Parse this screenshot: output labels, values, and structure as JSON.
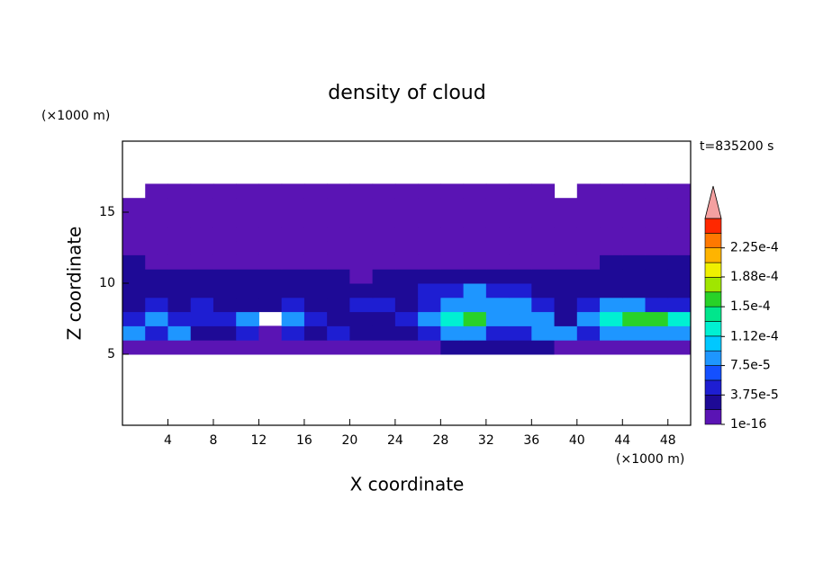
{
  "chart_data": {
    "type": "contour",
    "title": "density of cloud",
    "x_label": "X coordinate",
    "y_label": "Z coordinate",
    "x_unit": "(×1000 m)",
    "y_unit": "(×1000 m)",
    "time_label": "t=835200 s",
    "xlim": [
      0,
      50
    ],
    "ylim": [
      0,
      20
    ],
    "xticks": [
      4,
      8,
      12,
      16,
      20,
      24,
      28,
      32,
      36,
      40,
      44,
      48
    ],
    "yticks": [
      5,
      10,
      15
    ],
    "field": {
      "x": [
        1,
        3,
        5,
        7,
        9,
        11,
        13,
        15,
        17,
        19,
        21,
        23,
        25,
        27,
        29,
        31,
        33,
        35,
        37,
        39,
        41,
        43,
        45,
        47,
        49
      ],
      "z": [
        5.5,
        6.5,
        7.5,
        8.5,
        9.5,
        10.5,
        11.5,
        12.5,
        13.5,
        14.5,
        15.5,
        16.5
      ],
      "values": [
        [
          1e-05,
          1e-05,
          1e-05,
          1e-05,
          1e-05,
          1e-05,
          1e-05,
          1e-05,
          1e-05,
          1e-05,
          1e-05,
          1e-05,
          1e-05,
          1e-05,
          3e-05,
          3e-05,
          3e-05,
          3e-05,
          3e-05,
          1e-05,
          1e-05,
          1e-05,
          1e-05,
          1e-05,
          1e-05
        ],
        [
          8.5e-05,
          5e-05,
          8.5e-05,
          3e-05,
          3e-05,
          5e-05,
          1e-05,
          5e-05,
          3e-05,
          5e-05,
          3e-05,
          3e-05,
          3e-05,
          5e-05,
          8.5e-05,
          8.5e-05,
          5e-05,
          5e-05,
          8.5e-05,
          8.5e-05,
          5e-05,
          8.5e-05,
          8.5e-05,
          8.5e-05,
          8.5e-05
        ],
        [
          5e-05,
          8.5e-05,
          5e-05,
          5e-05,
          5e-05,
          8.5e-05,
          null,
          8.5e-05,
          5e-05,
          3e-05,
          3e-05,
          3e-05,
          5e-05,
          8.5e-05,
          0.00012,
          0.00016,
          8.5e-05,
          8.5e-05,
          8.5e-05,
          3e-05,
          8.5e-05,
          0.00012,
          0.00016,
          0.00016,
          0.00012
        ],
        [
          3e-05,
          5e-05,
          3e-05,
          5e-05,
          3e-05,
          3e-05,
          3e-05,
          5e-05,
          3e-05,
          3e-05,
          5e-05,
          5e-05,
          3e-05,
          5e-05,
          8.5e-05,
          8.5e-05,
          8.5e-05,
          8.5e-05,
          5e-05,
          3e-05,
          5e-05,
          8.5e-05,
          8.5e-05,
          5e-05,
          5e-05
        ],
        [
          3e-05,
          3e-05,
          3e-05,
          3e-05,
          3e-05,
          3e-05,
          3e-05,
          3e-05,
          3e-05,
          3e-05,
          3e-05,
          3e-05,
          3e-05,
          5e-05,
          5e-05,
          8.5e-05,
          5e-05,
          5e-05,
          3e-05,
          3e-05,
          3e-05,
          3e-05,
          3e-05,
          3e-05,
          3e-05
        ],
        [
          3e-05,
          3e-05,
          3e-05,
          3e-05,
          3e-05,
          3e-05,
          3e-05,
          3e-05,
          3e-05,
          3e-05,
          1e-05,
          3e-05,
          3e-05,
          3e-05,
          3e-05,
          3e-05,
          3e-05,
          3e-05,
          3e-05,
          3e-05,
          3e-05,
          3e-05,
          3e-05,
          3e-05,
          3e-05
        ],
        [
          3e-05,
          1e-05,
          1e-05,
          1e-05,
          1e-05,
          1e-05,
          1e-05,
          1e-05,
          1e-05,
          1e-05,
          1e-05,
          1e-05,
          1e-05,
          1e-05,
          1e-05,
          1e-05,
          1e-05,
          1e-05,
          1e-05,
          1e-05,
          1e-05,
          3e-05,
          3e-05,
          3e-05,
          3e-05
        ],
        [
          1e-05,
          1e-05,
          1e-05,
          1e-05,
          1e-05,
          1e-05,
          1e-05,
          1e-05,
          1e-05,
          1e-05,
          1e-05,
          1e-05,
          1e-05,
          1e-05,
          1e-05,
          1e-05,
          1e-05,
          1e-05,
          1e-05,
          1e-05,
          1e-05,
          1e-05,
          1e-05,
          1e-05,
          1e-05
        ],
        [
          1e-05,
          1e-05,
          1e-05,
          1e-05,
          1e-05,
          1e-05,
          1e-05,
          1e-05,
          1e-05,
          1e-05,
          1e-05,
          1e-05,
          1e-05,
          1e-05,
          1e-05,
          1e-05,
          1e-05,
          1e-05,
          1e-05,
          1e-05,
          1e-05,
          1e-05,
          1e-05,
          1e-05,
          1e-05
        ],
        [
          1e-05,
          1e-05,
          1e-05,
          1e-05,
          1e-05,
          1e-05,
          1e-05,
          1e-05,
          1e-05,
          1e-05,
          1e-05,
          1e-05,
          1e-05,
          1e-05,
          1e-05,
          1e-05,
          1e-05,
          1e-05,
          1e-05,
          1e-05,
          1e-05,
          1e-05,
          1e-05,
          1e-05,
          1e-05
        ],
        [
          1e-05,
          1e-05,
          1e-05,
          1e-05,
          1e-05,
          1e-05,
          1e-05,
          1e-05,
          1e-05,
          1e-05,
          1e-05,
          1e-05,
          1e-05,
          1e-05,
          1e-05,
          1e-05,
          1e-05,
          1e-05,
          1e-05,
          1e-05,
          1e-05,
          1e-05,
          1e-05,
          1e-05,
          1e-05
        ],
        [
          null,
          1e-05,
          1e-05,
          1e-05,
          1e-05,
          1e-05,
          1e-05,
          1e-05,
          1e-05,
          1e-05,
          1e-05,
          1e-05,
          1e-05,
          1e-05,
          1e-05,
          1e-05,
          1e-05,
          1e-05,
          1e-05,
          null,
          1e-05,
          1e-05,
          1e-05,
          1e-05,
          1e-05
        ]
      ]
    },
    "levels": [
      1e-16,
      1.875e-05,
      3.75e-05,
      5.625e-05,
      7.5e-05,
      9.375e-05,
      0.0001125,
      0.00013125,
      0.00015,
      0.00016875,
      0.0001875,
      0.00020625,
      0.000225,
      0.00024375
    ],
    "colors": [
      "#5a14b4",
      "#1e0a96",
      "#1e1ed2",
      "#1450ff",
      "#1e96ff",
      "#00c8ff",
      "#00f0d2",
      "#00e68c",
      "#28d228",
      "#a0e600",
      "#f0f000",
      "#ffb400",
      "#ff7800",
      "#ff2800"
    ],
    "over_color": "#f4a0a0",
    "colorbar_lim": [
      1e-16,
      0.0002625
    ],
    "colorbar_ticks": [
      {
        "value": 1e-16,
        "label": "1e-16"
      },
      {
        "value": 3.75e-05,
        "label": "3.75e-5"
      },
      {
        "value": 7.5e-05,
        "label": "7.5e-5"
      },
      {
        "value": 0.000112,
        "label": "1.12e-4"
      },
      {
        "value": 0.00015,
        "label": "1.5e-4"
      },
      {
        "value": 0.000188,
        "label": "1.88e-4"
      },
      {
        "value": 0.000225,
        "label": "2.25e-4"
      }
    ]
  }
}
